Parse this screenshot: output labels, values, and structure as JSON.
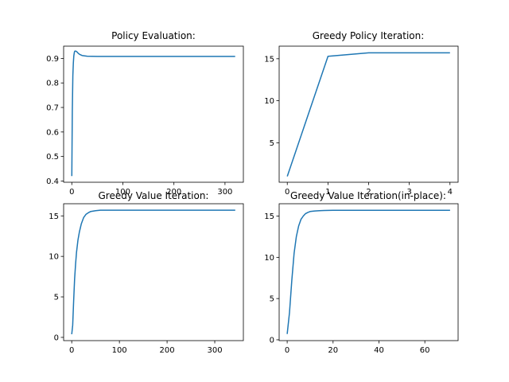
{
  "chart_data": [
    {
      "type": "line",
      "title": "Policy Evaluation:",
      "xlim": [
        -16,
        336
      ],
      "ylim": [
        0.395,
        0.95
      ],
      "xticks": [
        0,
        100,
        200,
        300
      ],
      "xtick_labels": [
        "0",
        "100",
        "200",
        "300"
      ],
      "yticks": [
        0.4,
        0.5,
        0.6,
        0.7,
        0.8,
        0.9
      ],
      "ytick_labels": [
        "0.4",
        "0.5",
        "0.6",
        "0.7",
        "0.8",
        "0.9"
      ],
      "series": [
        {
          "color": "#1f77b4",
          "x": [
            0,
            1,
            2,
            3,
            4,
            5,
            6,
            8,
            10,
            12,
            15,
            20,
            30,
            50,
            100,
            320
          ],
          "y": [
            0.42,
            0.68,
            0.83,
            0.88,
            0.91,
            0.925,
            0.93,
            0.93,
            0.927,
            0.922,
            0.917,
            0.912,
            0.909,
            0.908,
            0.908,
            0.908
          ]
        }
      ]
    },
    {
      "type": "line",
      "title": "Greedy Policy Iteration:",
      "xlim": [
        -0.2,
        4.2
      ],
      "ylim": [
        0.3,
        16.5
      ],
      "xticks": [
        0,
        1,
        2,
        3,
        4
      ],
      "xtick_labels": [
        "0",
        "1",
        "2",
        "3",
        "4"
      ],
      "yticks": [
        5,
        10,
        15
      ],
      "ytick_labels": [
        "5",
        "10",
        "15"
      ],
      "series": [
        {
          "color": "#1f77b4",
          "x": [
            0,
            1,
            2,
            3,
            4
          ],
          "y": [
            1.0,
            15.3,
            15.7,
            15.7,
            15.7
          ]
        }
      ]
    },
    {
      "type": "line",
      "title": "Greedy Value Iteration:",
      "xlim": [
        -17,
        360
      ],
      "ylim": [
        -0.4,
        16.5
      ],
      "xticks": [
        0,
        100,
        200,
        300
      ],
      "xtick_labels": [
        "0",
        "100",
        "200",
        "300"
      ],
      "yticks": [
        0,
        5,
        10,
        15
      ],
      "ytick_labels": [
        "0",
        "5",
        "10",
        "15"
      ],
      "series": [
        {
          "color": "#1f77b4",
          "x": [
            0,
            2,
            4,
            6,
            8,
            10,
            13,
            16,
            20,
            25,
            30,
            35,
            40,
            50,
            60,
            80,
            100,
            150,
            200,
            343
          ],
          "y": [
            0.4,
            1.5,
            4.5,
            7.2,
            9.0,
            10.5,
            12.0,
            13.0,
            14.0,
            14.8,
            15.2,
            15.4,
            15.55,
            15.65,
            15.7,
            15.7,
            15.7,
            15.7,
            15.7,
            15.7
          ]
        }
      ]
    },
    {
      "type": "line",
      "title": "Greedy Value Iteration(in-place):",
      "xlim": [
        -3.5,
        74.5
      ],
      "ylim": [
        -0.1,
        16.5
      ],
      "xticks": [
        0,
        20,
        40,
        60
      ],
      "xtick_labels": [
        "0",
        "20",
        "40",
        "60"
      ],
      "yticks": [
        0,
        5,
        10,
        15
      ],
      "ytick_labels": [
        "0",
        "5",
        "10",
        "15"
      ],
      "series": [
        {
          "color": "#1f77b4",
          "x": [
            0,
            1,
            2,
            3,
            4,
            5,
            6,
            7,
            8,
            9,
            10,
            12,
            14,
            16,
            20,
            30,
            71
          ],
          "y": [
            0.7,
            3.3,
            7.2,
            10.5,
            12.5,
            13.8,
            14.6,
            15.0,
            15.3,
            15.45,
            15.55,
            15.62,
            15.66,
            15.68,
            15.7,
            15.7,
            15.7
          ]
        }
      ]
    }
  ]
}
